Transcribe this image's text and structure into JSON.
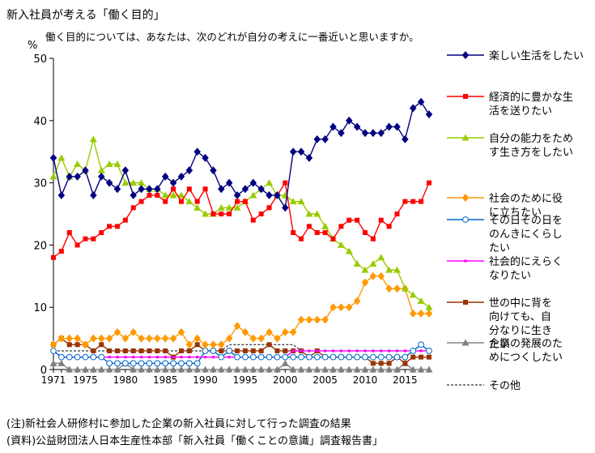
{
  "page": {
    "title": "新入社員が考える「働く目的」",
    "notes": [
      "(注)新社会人研修村に参加した企業の新入社員に対して行った調査の結果",
      "(資料)公益財団法人日本生産性本部「新入社員「働くことの意識」調査報告書」"
    ]
  },
  "chart_data": {
    "type": "line",
    "question": "働く目的については、あなたは、次のどれが自分の考えに一番近いと思いますか。",
    "ylabel": "%",
    "xlabel": "",
    "ylim": [
      0,
      50
    ],
    "yticks": [
      0,
      10,
      20,
      30,
      40,
      50
    ],
    "xlim": [
      1971,
      2018
    ],
    "xticks": [
      1971,
      1975,
      1980,
      1985,
      1990,
      1995,
      2000,
      2005,
      2010,
      2015
    ],
    "grid": false,
    "legend_position": "right",
    "x": [
      1971,
      1972,
      1973,
      1974,
      1975,
      1976,
      1977,
      1978,
      1979,
      1980,
      1981,
      1982,
      1983,
      1984,
      1985,
      1986,
      1987,
      1988,
      1989,
      1990,
      1991,
      1992,
      1993,
      1994,
      1995,
      1996,
      1997,
      1998,
      1999,
      2000,
      2001,
      2002,
      2003,
      2004,
      2005,
      2006,
      2007,
      2008,
      2009,
      2010,
      2011,
      2012,
      2013,
      2014,
      2015,
      2016,
      2017,
      2018
    ],
    "series": [
      {
        "name": "楽しい生活をしたい",
        "color": "#000080",
        "marker": "diamond",
        "dash": "",
        "values": [
          34,
          28,
          31,
          31,
          32,
          28,
          31,
          30,
          29,
          32,
          28,
          29,
          29,
          29,
          31,
          30,
          31,
          32,
          35,
          34,
          32,
          29,
          30,
          28,
          29,
          30,
          29,
          28,
          28,
          26,
          35,
          35,
          34,
          37,
          37,
          39,
          38,
          40,
          39,
          38,
          38,
          38,
          39,
          39,
          37,
          42,
          43,
          41
        ]
      },
      {
        "name": "経済的に豊かな生活を送りたい",
        "color": "#ff0000",
        "marker": "square",
        "dash": "",
        "values": [
          18,
          19,
          22,
          20,
          21,
          21,
          22,
          23,
          23,
          24,
          26,
          27,
          28,
          28,
          27,
          29,
          27,
          29,
          27,
          29,
          25,
          25,
          25,
          27,
          27,
          24,
          25,
          26,
          28,
          30,
          22,
          21,
          23,
          22,
          22,
          21,
          23,
          24,
          24,
          22,
          21,
          24,
          23,
          25,
          27,
          27,
          27,
          30
        ]
      },
      {
        "name": "自分の能力をためす生き方をしたい",
        "color": "#99cc00",
        "marker": "triangle",
        "dash": "",
        "values": [
          31,
          34,
          31,
          33,
          32,
          37,
          32,
          33,
          33,
          30,
          30,
          30,
          29,
          29,
          28,
          28,
          28,
          27,
          26,
          25,
          25,
          26,
          26,
          26,
          27,
          28,
          29,
          30,
          28,
          28,
          27,
          27,
          25,
          25,
          23,
          21,
          20,
          19,
          17,
          16,
          17,
          18,
          16,
          16,
          13,
          12,
          11,
          10
        ]
      },
      {
        "name": "社会のために役に立ちたい",
        "color": "#ff9900",
        "marker": "diamond",
        "dash": "",
        "values": [
          4,
          5,
          5,
          5,
          4,
          5,
          5,
          5,
          6,
          5,
          6,
          5,
          5,
          5,
          5,
          5,
          6,
          4,
          5,
          4,
          4,
          4,
          5,
          7,
          6,
          5,
          5,
          6,
          5,
          6,
          6,
          8,
          8,
          8,
          8,
          10,
          10,
          10,
          11,
          14,
          15,
          15,
          13,
          13,
          13,
          9,
          9,
          9
        ]
      },
      {
        "name": "その日その日をのんきにくらしたい",
        "color": "#0066cc",
        "marker": "circle",
        "dash": "",
        "values": [
          3,
          2,
          2,
          2,
          2,
          2,
          2,
          1,
          1,
          1,
          1,
          1,
          1,
          1,
          1,
          1,
          1,
          1,
          1,
          3,
          3,
          2,
          3,
          2,
          2,
          2,
          2,
          2,
          2,
          2,
          2,
          2,
          2,
          2,
          2,
          2,
          2,
          2,
          2,
          2,
          2,
          2,
          2,
          2,
          2,
          3,
          4,
          3
        ]
      },
      {
        "name": "社会的にえらくなりたい",
        "color": "#ff00ff",
        "marker": "dot",
        "dash": "",
        "values": [
          3,
          2,
          2,
          2,
          2,
          2,
          2,
          2,
          2,
          2,
          2,
          2,
          2,
          2,
          2,
          2,
          2,
          2,
          2,
          2,
          2,
          2,
          2,
          2,
          2,
          2,
          2,
          2,
          2,
          2,
          3,
          3,
          3,
          3,
          3,
          3,
          3,
          3,
          3,
          3,
          3,
          3,
          3,
          3,
          3,
          3,
          3,
          3
        ]
      },
      {
        "name": "世の中に背を向けても、自分なりに生きたい",
        "color": "#993300",
        "marker": "square",
        "dash": "",
        "values": [
          4,
          5,
          4,
          4,
          4,
          3,
          4,
          3,
          3,
          3,
          3,
          3,
          3,
          3,
          3,
          2,
          3,
          3,
          4,
          3,
          3,
          3,
          3,
          3,
          3,
          3,
          3,
          4,
          3,
          3,
          3,
          3,
          2,
          3,
          2,
          2,
          2,
          2,
          2,
          2,
          1,
          1,
          1,
          2,
          1,
          2,
          2,
          2
        ]
      },
      {
        "name": "企業の発展のためにつくしたい",
        "color": "#808080",
        "marker": "triangle",
        "dash": "",
        "values": [
          1,
          1,
          0,
          0,
          0,
          0,
          0,
          0,
          0,
          1,
          0,
          0,
          0,
          0,
          0,
          0,
          0,
          0,
          0,
          0,
          0,
          0,
          0,
          0,
          0,
          0,
          0,
          0,
          0,
          1,
          0,
          0,
          0,
          0,
          0,
          0,
          0,
          0,
          0,
          0,
          0,
          0,
          0,
          0,
          1,
          0,
          0,
          0
        ]
      },
      {
        "name": "その他",
        "color": "#000000",
        "marker": "none",
        "dash": "3,2",
        "values": [
          3,
          3,
          3,
          3,
          3,
          3,
          3,
          3,
          3,
          3,
          3,
          3,
          3,
          3,
          3,
          3,
          3,
          3,
          3,
          3,
          3,
          3,
          4,
          4,
          4,
          4,
          4,
          4,
          4,
          4,
          4,
          3,
          3,
          3,
          3,
          3,
          3,
          3,
          3,
          3,
          3,
          3,
          3,
          3,
          3,
          3,
          3,
          3
        ]
      }
    ]
  }
}
